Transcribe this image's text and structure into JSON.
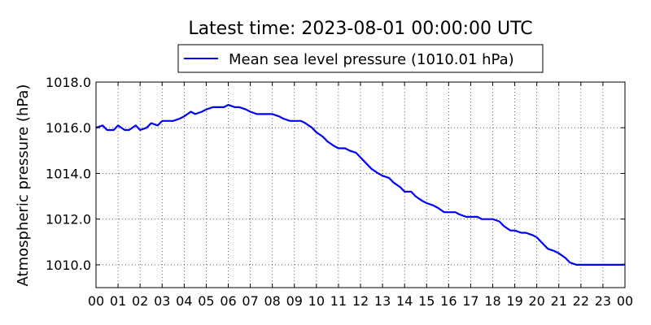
{
  "chart_data": {
    "type": "line",
    "title": "Latest time: 2023-08-01 00:00:00 UTC",
    "ylabel": "Atmospheric pressure (hPa)",
    "xlabel": "",
    "ylim": [
      1009.0,
      1018.0
    ],
    "yticks": [
      "1010.0",
      "1012.0",
      "1014.0",
      "1016.0",
      "1018.0"
    ],
    "ytick_values": [
      1010.0,
      1012.0,
      1014.0,
      1016.0,
      1018.0
    ],
    "xticks": [
      "00",
      "01",
      "02",
      "03",
      "04",
      "05",
      "06",
      "07",
      "08",
      "09",
      "10",
      "11",
      "12",
      "13",
      "14",
      "15",
      "16",
      "17",
      "18",
      "19",
      "20",
      "21",
      "22",
      "23",
      "00"
    ],
    "xlim": [
      0,
      24
    ],
    "grid": true,
    "legend_position": "top-center",
    "series": [
      {
        "name": "Mean sea level pressure (1010.01 hPa)",
        "color": "#0000ff",
        "x": [
          0,
          0.3,
          0.5,
          0.8,
          1.0,
          1.3,
          1.5,
          1.8,
          2.0,
          2.3,
          2.5,
          2.8,
          3.0,
          3.3,
          3.5,
          3.8,
          4.0,
          4.3,
          4.5,
          4.8,
          5.0,
          5.3,
          5.5,
          5.8,
          6.0,
          6.3,
          6.5,
          6.8,
          7.0,
          7.3,
          7.5,
          7.8,
          8.0,
          8.3,
          8.5,
          8.8,
          9.0,
          9.3,
          9.5,
          9.8,
          10.0,
          10.3,
          10.5,
          10.8,
          11.0,
          11.3,
          11.5,
          11.8,
          12.0,
          12.3,
          12.5,
          12.8,
          13.0,
          13.3,
          13.5,
          13.8,
          14.0,
          14.3,
          14.5,
          14.8,
          15.0,
          15.3,
          15.5,
          15.8,
          16.0,
          16.3,
          16.5,
          16.8,
          17.0,
          17.3,
          17.5,
          17.8,
          18.0,
          18.3,
          18.5,
          18.8,
          19.0,
          19.3,
          19.5,
          19.8,
          20.0,
          20.3,
          20.5,
          20.8,
          21.0,
          21.3,
          21.5,
          21.8,
          22.0,
          22.3,
          22.5,
          22.8,
          23.0,
          23.3,
          23.5,
          23.8,
          24.0
        ],
        "values": [
          1016.0,
          1016.1,
          1015.9,
          1015.9,
          1016.1,
          1015.9,
          1015.9,
          1016.1,
          1015.9,
          1016.0,
          1016.2,
          1016.1,
          1016.3,
          1016.3,
          1016.3,
          1016.4,
          1016.5,
          1016.7,
          1016.6,
          1016.7,
          1016.8,
          1016.9,
          1016.9,
          1016.9,
          1017.0,
          1016.9,
          1016.9,
          1016.8,
          1016.7,
          1016.6,
          1016.6,
          1016.6,
          1016.6,
          1016.5,
          1016.4,
          1016.3,
          1016.3,
          1016.3,
          1016.2,
          1016.0,
          1015.8,
          1015.6,
          1015.4,
          1015.2,
          1015.1,
          1015.1,
          1015.0,
          1014.9,
          1014.7,
          1014.4,
          1014.2,
          1014.0,
          1013.9,
          1013.8,
          1013.6,
          1013.4,
          1013.2,
          1013.2,
          1013.0,
          1012.8,
          1012.7,
          1012.6,
          1012.5,
          1012.3,
          1012.3,
          1012.3,
          1012.2,
          1012.1,
          1012.1,
          1012.1,
          1012.0,
          1012.0,
          1012.0,
          1011.9,
          1011.7,
          1011.5,
          1011.5,
          1011.4,
          1011.4,
          1011.3,
          1011.2,
          1010.9,
          1010.7,
          1010.6,
          1010.5,
          1010.3,
          1010.1,
          1010.0,
          1010.0,
          1010.0,
          1010.0,
          1010.0,
          1010.0,
          1010.0,
          1010.0,
          1010.0,
          1010.01
        ]
      }
    ]
  }
}
